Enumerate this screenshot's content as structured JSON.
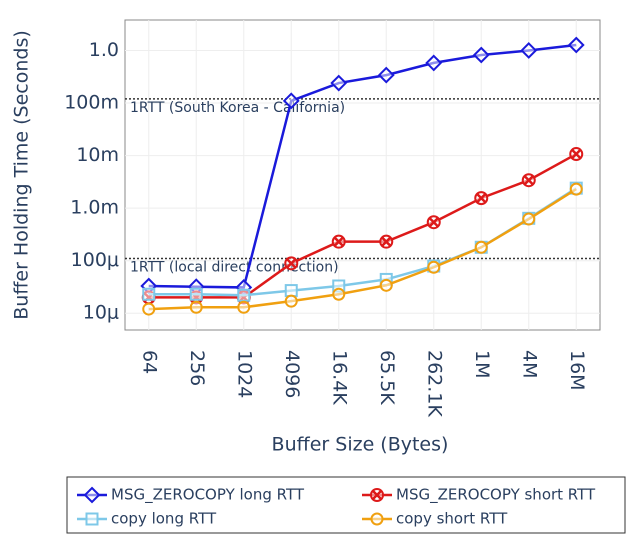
{
  "chart_data": {
    "type": "line",
    "log_y": true,
    "grid": true,
    "legend": "bottom",
    "xlabel": "Buffer Size (Bytes)",
    "ylabel": "Buffer Holding Time (Seconds)",
    "categories": [
      "64",
      "256",
      "1024",
      "4096",
      "16.4K",
      "65.5K",
      "262.1K",
      "1M",
      "4M",
      "16M"
    ],
    "ylim": [
      4.8e-06,
      3.8
    ],
    "yticks": [
      {
        "value": 1e-05,
        "label": "10μ"
      },
      {
        "value": 0.0001,
        "label": "100μ"
      },
      {
        "value": 0.001,
        "label": "1.0m"
      },
      {
        "value": 0.01,
        "label": "10m"
      },
      {
        "value": 0.1,
        "label": "100m"
      },
      {
        "value": 1,
        "label": "1.0"
      }
    ],
    "hlines": [
      {
        "value": 0.12,
        "label": "1RTT (South Korea - California)"
      },
      {
        "value": 0.00011,
        "label": "1RTT (local direct connection)"
      }
    ],
    "series": [
      {
        "name": "MSG_ZEROCOPY long RTT",
        "color": "#1a1adb",
        "marker": "diamond",
        "values": [
          3.3e-05,
          3.2e-05,
          3.1e-05,
          0.11,
          0.24,
          0.34,
          0.58,
          0.82,
          1.0,
          1.27
        ]
      },
      {
        "name": "MSG_ZEROCOPY short RTT",
        "color": "#dd1a1a",
        "marker": "cross",
        "values": [
          2e-05,
          2e-05,
          2e-05,
          8.9e-05,
          0.00023,
          0.00023,
          0.00054,
          0.00155,
          0.0034,
          0.0107
        ]
      },
      {
        "name": "copy long RTT",
        "color": "#7ec8e8",
        "marker": "square",
        "values": [
          2.3e-05,
          2.3e-05,
          2.2e-05,
          2.7e-05,
          3.3e-05,
          4.4e-05,
          7.9e-05,
          0.00018,
          0.00064,
          0.0024
        ]
      },
      {
        "name": "copy short RTT",
        "color": "#f0a010",
        "marker": "circle",
        "values": [
          1.2e-05,
          1.3e-05,
          1.3e-05,
          1.7e-05,
          2.3e-05,
          3.4e-05,
          7.5e-05,
          0.00018,
          0.00062,
          0.0023
        ]
      }
    ]
  }
}
